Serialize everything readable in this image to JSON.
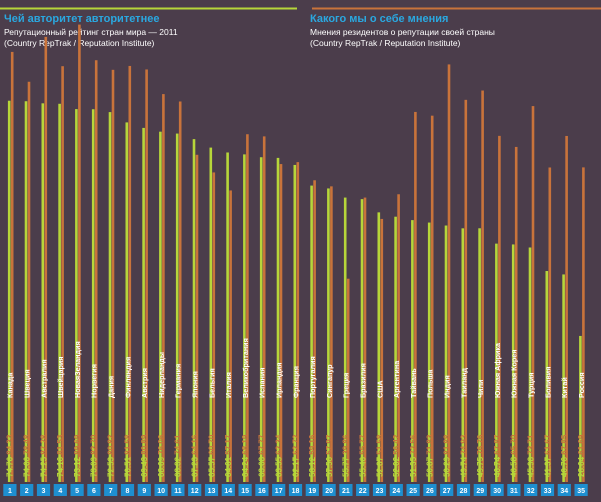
{
  "colors": {
    "background": "#4b3d4b",
    "left_series": "#b7d63a",
    "right_series": "#c9733b",
    "accent_blue": "#2aa8e0",
    "rank_box": "#1e8fd0",
    "white": "#ffffff"
  },
  "header_left": {
    "title": "Чей авторитет авторитетнее",
    "subtitle_line1": "Репутационный рейтинг стран мира — 2011",
    "subtitle_line2": "(Country RepTrak / Reputation Institute)"
  },
  "header_right": {
    "title": "Какого мы о себе мнения",
    "subtitle_line1": "Мнения резидентов о репутации своей страны",
    "subtitle_line2": "(Country RepTrak / Reputation Institute)"
  },
  "chart_data": {
    "type": "bar",
    "series": [
      {
        "key": "external",
        "values": [
          74.76,
          74.66,
          74.25,
          74.16,
          73.12,
          73.09,
          72.53,
          70.51,
          69.43,
          68.69,
          68.32,
          67.23,
          65.57,
          64.61,
          64.24,
          63.68,
          63.55,
          62.17,
          58.12,
          57.56,
          55.77,
          55.46,
          52.87,
          52.02,
          51.35,
          50.87,
          50.29,
          49.74,
          49.75,
          46.74,
          46.58,
          45.98,
          41.37,
          40.7,
          28.64
        ]
      },
      {
        "key": "internal",
        "values": [
          84.33,
          78.48,
          87.28,
          81.53,
          89.69,
          82.7,
          80.82,
          81.58,
          80.89,
          76.06,
          74.61,
          64.16,
          60.7,
          57.17,
          68.19,
          67.77,
          62.34,
          62.72,
          59.16,
          57.97,
          39.86,
          55.77,
          51.58,
          56.42,
          72.56,
          71.83,
          81.88,
          74.93,
          76.76,
          67.87,
          65.7,
          73.71,
          61.67,
          67.85,
          61.69
        ]
      }
    ],
    "categories": [
      "Канада",
      "Швеция",
      "Австралия",
      "Швейцария",
      "НоваяЗеландия",
      "Норвегия",
      "Дания",
      "Финляндия",
      "Австрия",
      "Нидерланды",
      "Германия",
      "Япония",
      "Бельгия",
      "Италия",
      "Великобритания",
      "Испания",
      "Ирландия",
      "Франция",
      "Португалия",
      "Сингапур",
      "Греция",
      "Бразилия",
      "США",
      "Аргентина",
      "Тайвань",
      "Польша",
      "Индия",
      "Таиланд",
      "Чили",
      "Южная Африка",
      "Южная Корея",
      "Турция",
      "Боливия",
      "Китай",
      "Россия"
    ],
    "ranks": [
      "1",
      "2",
      "3",
      "4",
      "5",
      "6",
      "7",
      "8",
      "9",
      "10",
      "11",
      "12",
      "13",
      "14",
      "15",
      "16",
      "17",
      "18",
      "19",
      "20",
      "21",
      "22",
      "23",
      "24",
      "25",
      "26",
      "27",
      "28",
      "29",
      "30",
      "31",
      "32",
      "33",
      "34",
      "35"
    ],
    "ylim": [
      0,
      100
    ]
  }
}
